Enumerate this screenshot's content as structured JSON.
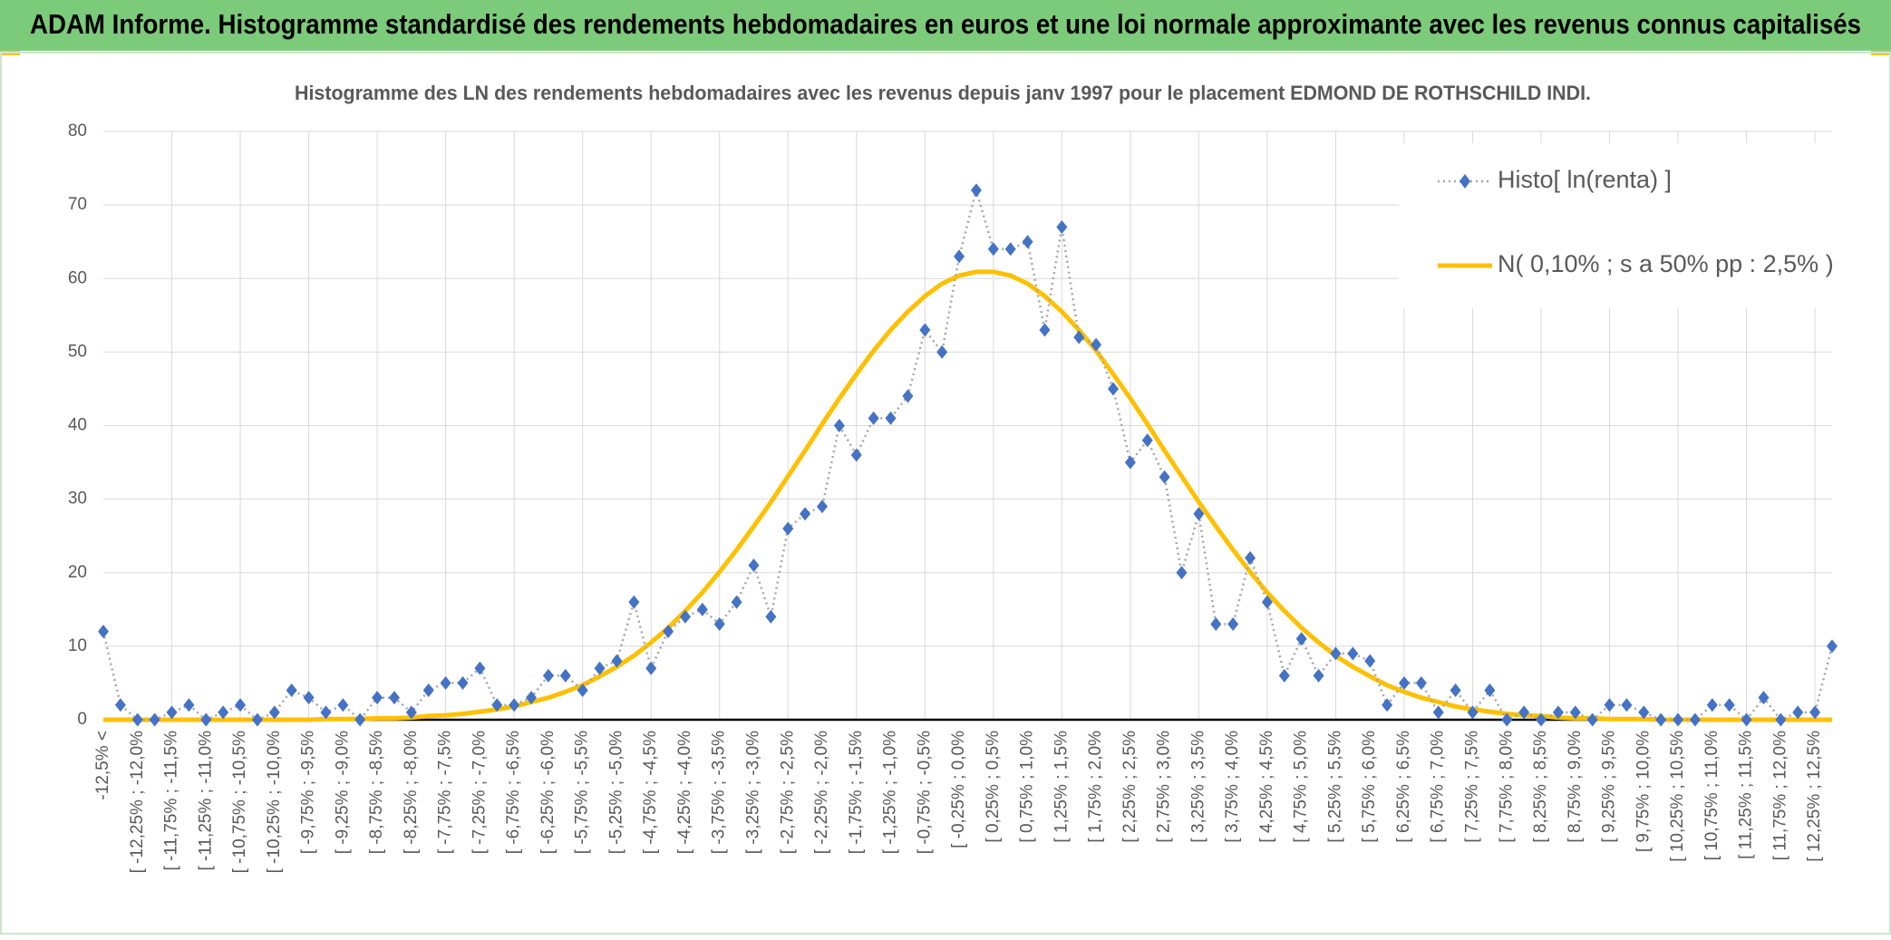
{
  "header": {
    "title": "ADAM Informe. Histogramme standardisé des rendements hebdomadaires en euros et une loi normale approximante avec les revenus connus capitalisés"
  },
  "chart_data": {
    "type": "line",
    "title": "Histogramme des LN des rendements hebdomadaires avec les revenus depuis janv 1997 pour le placement EDMOND DE ROTHSCHILD INDI.",
    "categories": [
      "-12,5% <",
      null,
      "[ -12,25% ; -12,0%",
      null,
      "[ -11,75% ; -11,5%",
      null,
      "[ -11,25% ; -11,0%",
      null,
      "[ -10,75% ; -10,5%",
      null,
      "[ -10,25% ; -10,0%",
      null,
      "[ -9,75% ; -9,5%",
      null,
      "[ -9,25% ; -9,0%",
      null,
      "[ -8,75% ; -8,5%",
      null,
      "[ -8,25% ; -8,0%",
      null,
      "[ -7,75% ; -7,5%",
      null,
      "[ -7,25% ; -7,0%",
      null,
      "[ -6,75% ; -6,5%",
      null,
      "[ -6,25% ; -6,0%",
      null,
      "[ -5,75% ; -5,5%",
      null,
      "[ -5,25% ; -5,0%",
      null,
      "[ -4,75% ; -4,5%",
      null,
      "[ -4,25% ; -4,0%",
      null,
      "[ -3,75% ; -3,5%",
      null,
      "[ -3,25% ; -3,0%",
      null,
      "[ -2,75% ; -2,5%",
      null,
      "[ -2,25% ; -2,0%",
      null,
      "[ -1,75% ; -1,5%",
      null,
      "[ -1,25% ; -1,0%",
      null,
      "[ -0,75% ; -0,5%",
      null,
      "[ -0,25% ; 0,0%",
      null,
      "[ 0,25% ; 0,5%",
      null,
      "[ 0,75% ; 1,0%",
      null,
      "[ 1,25% ; 1,5%",
      null,
      "[ 1,75% ; 2,0%",
      null,
      "[ 2,25% ; 2,5%",
      null,
      "[ 2,75% ; 3,0%",
      null,
      "[ 3,25% ; 3,5%",
      null,
      "[ 3,75% ; 4,0%",
      null,
      "[ 4,25% ; 4,5%",
      null,
      "[ 4,75% ; 5,0%",
      null,
      "[ 5,25% ; 5,5%",
      null,
      "[ 5,75% ; 6,0%",
      null,
      "[ 6,25% ; 6,5%",
      null,
      "[ 6,75% ; 7,0%",
      null,
      "[ 7,25% ; 7,5%",
      null,
      "[ 7,75% ; 8,0%",
      null,
      "[ 8,25% ; 8,5%",
      null,
      "[ 8,75% ; 9,0%",
      null,
      "[ 9,25% ; 9,5%",
      null,
      "[ 9,75% ; 10,0%",
      null,
      "[ 10,25% ; 10,5%",
      null,
      "[ 10,75% ; 11,0%",
      null,
      "[ 11,25% ; 11,5%",
      null,
      "[ 11,75% ; 12,0%",
      null,
      "[ 12,25% ; 12,5%",
      null
    ],
    "series": [
      {
        "name": "Histo[ ln(renta) ]",
        "color": "#4472c4",
        "line_color": "#a5a5a5",
        "marker": "diamond",
        "values": [
          12,
          2,
          0,
          0,
          1,
          2,
          0,
          1,
          2,
          0,
          1,
          4,
          3,
          1,
          2,
          0,
          3,
          3,
          1,
          4,
          5,
          5,
          7,
          2,
          2,
          3,
          6,
          6,
          4,
          7,
          8,
          16,
          7,
          12,
          14,
          15,
          13,
          16,
          21,
          14,
          26,
          28,
          29,
          40,
          36,
          41,
          41,
          44,
          53,
          50,
          63,
          72,
          64,
          64,
          65,
          53,
          67,
          52,
          51,
          45,
          35,
          38,
          33,
          20,
          28,
          13,
          13,
          22,
          16,
          6,
          11,
          6,
          9,
          9,
          8,
          2,
          5,
          5,
          1,
          4,
          1,
          4,
          0,
          1,
          0,
          1,
          1,
          0,
          2,
          2,
          1,
          0,
          0,
          0,
          2,
          2,
          0,
          3,
          0,
          1,
          1,
          10
        ]
      },
      {
        "name": "N( 0,10% ; s a 50% pp : 2,5% )",
        "color": "#ffc000",
        "values": [
          0,
          0,
          0,
          0,
          0,
          0,
          0,
          0,
          0,
          0,
          0,
          0,
          0,
          0.1,
          0.1,
          0.1,
          0.2,
          0.2,
          0.3,
          0.5,
          0.6,
          0.8,
          1.1,
          1.4,
          1.8,
          2.4,
          3.0,
          3.8,
          4.7,
          5.9,
          7.2,
          8.7,
          10.5,
          12.5,
          14.8,
          17.3,
          20.1,
          23.1,
          26.3,
          29.6,
          33.1,
          36.6,
          40.2,
          43.7,
          47.0,
          50.2,
          53.0,
          55.5,
          57.6,
          59.3,
          60.4,
          60.9,
          60.9,
          60.4,
          59.3,
          57.6,
          55.5,
          53.0,
          50.2,
          47.0,
          43.7,
          40.2,
          36.6,
          33.1,
          29.6,
          26.3,
          23.1,
          20.1,
          17.3,
          14.8,
          12.5,
          10.5,
          8.7,
          7.2,
          5.9,
          4.7,
          3.8,
          3.0,
          2.4,
          1.8,
          1.4,
          1.1,
          0.8,
          0.6,
          0.5,
          0.3,
          0.2,
          0.2,
          0.1,
          0.1,
          0.1,
          0,
          0,
          0,
          0,
          0,
          0,
          0,
          0,
          0,
          0,
          0
        ]
      }
    ],
    "ylim": [
      0,
      80
    ],
    "yticks": [
      0,
      10,
      20,
      30,
      40,
      50,
      60,
      70,
      80
    ],
    "grid": true,
    "legend": "top-right"
  }
}
